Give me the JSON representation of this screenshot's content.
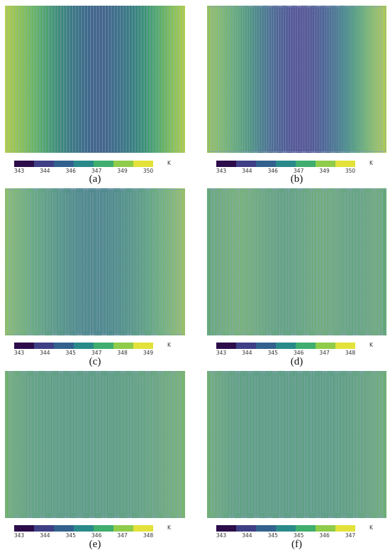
{
  "figure": {
    "panels": [
      {
        "id": "a",
        "caption": "(a)",
        "pattern": "parallel",
        "colorbar_ticks": [
          "343",
          "344",
          "346",
          "347",
          "349",
          "350"
        ],
        "unit": "K",
        "field_profile": [
          "#b5cf47",
          "#9ac850",
          "#7dbf5c",
          "#62b367",
          "#4aa170",
          "#3e8e78",
          "#3b7e81",
          "#3a7286",
          "#3f688a",
          "#436489",
          "#3f6a89",
          "#3b7486",
          "#388180",
          "#3a9078",
          "#4aa56f",
          "#68b561",
          "#8ec655",
          "#b3cf4a"
        ]
      },
      {
        "id": "b",
        "caption": "(b)",
        "pattern": "serpentine-dense",
        "colorbar_ticks": [
          "343",
          "344",
          "346",
          "347",
          "349",
          "350"
        ],
        "unit": "K",
        "field_profile": [
          "#9cc852",
          "#86c45a",
          "#6cb865",
          "#55aa6b",
          "#449672",
          "#3a7c7e",
          "#3d6487",
          "#3f5289",
          "#45458a",
          "#48438a",
          "#44488a",
          "#3d568a",
          "#3a6b86",
          "#3a847f",
          "#48a070",
          "#6cb963",
          "#98c954",
          "#b6d047"
        ]
      },
      {
        "id": "c",
        "caption": "(c)",
        "pattern": "serpentine",
        "colorbar_ticks": [
          "343",
          "344",
          "345",
          "347",
          "348",
          "349"
        ],
        "unit": "K",
        "field_profile": [
          "#8fc55a",
          "#78bd60",
          "#66b567",
          "#58ab6c",
          "#4fa070",
          "#469674",
          "#3f8c77",
          "#3b857a",
          "#3a817b",
          "#3a817b",
          "#3b857a",
          "#3f8c77",
          "#469674",
          "#4fa070",
          "#5aad6b",
          "#6cb866",
          "#84c05d",
          "#9dc855"
        ]
      },
      {
        "id": "d",
        "caption": "(d)",
        "pattern": "serpentine",
        "colorbar_ticks": [
          "343",
          "344",
          "345",
          "346",
          "347",
          "348"
        ],
        "unit": "K",
        "field_profile": [
          "#5aa86c",
          "#62ae68",
          "#6bb465",
          "#71b762",
          "#6cb465",
          "#62ae68",
          "#5aa86b",
          "#55a46d",
          "#56a56c",
          "#5ba96b",
          "#62ae68",
          "#67b166",
          "#62ae68",
          "#5ba96b",
          "#57a66c",
          "#5ea96a",
          "#66af67",
          "#5aa86c"
        ]
      },
      {
        "id": "e",
        "caption": "(e)",
        "pattern": "serpentine",
        "colorbar_ticks": [
          "343",
          "344",
          "345",
          "346",
          "347",
          "348"
        ],
        "unit": "K",
        "field_profile": [
          "#6db662",
          "#62ae67",
          "#59a86b",
          "#53a46d",
          "#50a16e",
          "#4f9f6f",
          "#4e9e70",
          "#4e9e70",
          "#4e9e70",
          "#4f9f6f",
          "#4f9f6f",
          "#50a16e",
          "#53a36d",
          "#57a66c",
          "#5ca96a",
          "#63ae67",
          "#6bb464",
          "#75ba60"
        ]
      },
      {
        "id": "f",
        "caption": "(f)",
        "pattern": "serpentine",
        "colorbar_ticks": [
          "343",
          "344",
          "345",
          "345",
          "346",
          "347"
        ],
        "unit": "K",
        "field_profile": [
          "#6ab465",
          "#5fac69",
          "#56a66c",
          "#51a26e",
          "#4fa06f",
          "#4e9f70",
          "#4e9f70",
          "#4e9f70",
          "#4e9f70",
          "#4e9f70",
          "#4e9f70",
          "#4e9f70",
          "#4f9f6f",
          "#51a16e",
          "#55a46d",
          "#5ba86b",
          "#61ad68",
          "#68b265"
        ]
      }
    ],
    "colorbar_colors": [
      "#2c0d4a",
      "#3f3f85",
      "#33618e",
      "#2a8a8a",
      "#3fae6e",
      "#8fcc4a",
      "#e2e23a"
    ]
  }
}
